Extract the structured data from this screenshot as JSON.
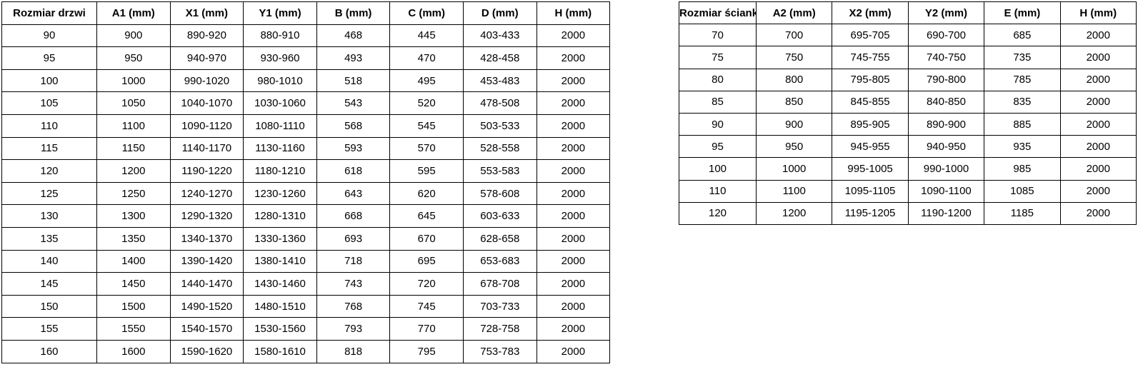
{
  "colors": {
    "border": "#000000",
    "text": "#000000",
    "background": "#ffffff"
  },
  "tables": [
    {
      "name": "door-sizes",
      "headers": [
        "Rozmiar drzwi",
        "A1 (mm)",
        "X1 (mm)",
        "Y1 (mm)",
        "B (mm)",
        "C (mm)",
        "D (mm)",
        "H (mm)"
      ],
      "rows": [
        [
          "90",
          "900",
          "890-920",
          "880-910",
          "468",
          "445",
          "403-433",
          "2000"
        ],
        [
          "95",
          "950",
          "940-970",
          "930-960",
          "493",
          "470",
          "428-458",
          "2000"
        ],
        [
          "100",
          "1000",
          "990-1020",
          "980-1010",
          "518",
          "495",
          "453-483",
          "2000"
        ],
        [
          "105",
          "1050",
          "1040-1070",
          "1030-1060",
          "543",
          "520",
          "478-508",
          "2000"
        ],
        [
          "110",
          "1100",
          "1090-1120",
          "1080-1110",
          "568",
          "545",
          "503-533",
          "2000"
        ],
        [
          "115",
          "1150",
          "1140-1170",
          "1130-1160",
          "593",
          "570",
          "528-558",
          "2000"
        ],
        [
          "120",
          "1200",
          "1190-1220",
          "1180-1210",
          "618",
          "595",
          "553-583",
          "2000"
        ],
        [
          "125",
          "1250",
          "1240-1270",
          "1230-1260",
          "643",
          "620",
          "578-608",
          "2000"
        ],
        [
          "130",
          "1300",
          "1290-1320",
          "1280-1310",
          "668",
          "645",
          "603-633",
          "2000"
        ],
        [
          "135",
          "1350",
          "1340-1370",
          "1330-1360",
          "693",
          "670",
          "628-658",
          "2000"
        ],
        [
          "140",
          "1400",
          "1390-1420",
          "1380-1410",
          "718",
          "695",
          "653-683",
          "2000"
        ],
        [
          "145",
          "1450",
          "1440-1470",
          "1430-1460",
          "743",
          "720",
          "678-708",
          "2000"
        ],
        [
          "150",
          "1500",
          "1490-1520",
          "1480-1510",
          "768",
          "745",
          "703-733",
          "2000"
        ],
        [
          "155",
          "1550",
          "1540-1570",
          "1530-1560",
          "793",
          "770",
          "728-758",
          "2000"
        ],
        [
          "160",
          "1600",
          "1590-1620",
          "1580-1610",
          "818",
          "795",
          "753-783",
          "2000"
        ]
      ]
    },
    {
      "name": "wall-sizes",
      "headers": [
        "Rozmiar ścianki",
        "A2 (mm)",
        "X2 (mm)",
        "Y2 (mm)",
        "E (mm)",
        "H (mm)"
      ],
      "rows": [
        [
          "70",
          "700",
          "695-705",
          "690-700",
          "685",
          "2000"
        ],
        [
          "75",
          "750",
          "745-755",
          "740-750",
          "735",
          "2000"
        ],
        [
          "80",
          "800",
          "795-805",
          "790-800",
          "785",
          "2000"
        ],
        [
          "85",
          "850",
          "845-855",
          "840-850",
          "835",
          "2000"
        ],
        [
          "90",
          "900",
          "895-905",
          "890-900",
          "885",
          "2000"
        ],
        [
          "95",
          "950",
          "945-955",
          "940-950",
          "935",
          "2000"
        ],
        [
          "100",
          "1000",
          "995-1005",
          "990-1000",
          "985",
          "2000"
        ],
        [
          "110",
          "1100",
          "1095-1105",
          "1090-1100",
          "1085",
          "2000"
        ],
        [
          "120",
          "1200",
          "1195-1205",
          "1190-1200",
          "1185",
          "2000"
        ]
      ]
    }
  ]
}
